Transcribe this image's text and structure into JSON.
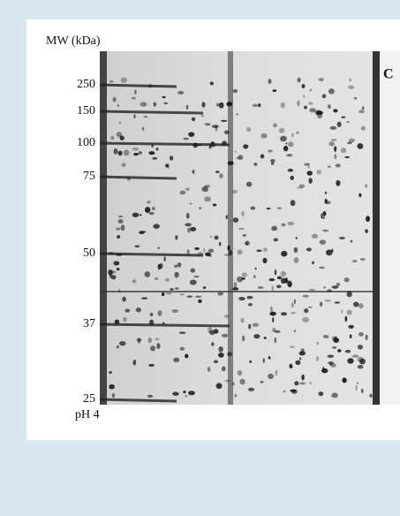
{
  "figure": {
    "axis_title": "MW (kDa)",
    "panel_label": "C",
    "ph_label": "pH 4",
    "markers": [
      "250",
      "150",
      "100",
      "75",
      "50",
      "37",
      "25"
    ]
  }
}
